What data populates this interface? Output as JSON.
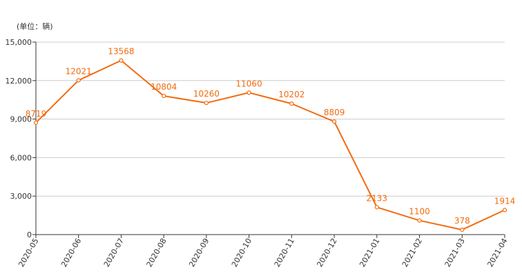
{
  "chart_data": {
    "type": "line",
    "unit_label": "(单位：辆)",
    "title": "",
    "xlabel": "",
    "ylabel": "",
    "ylim": [
      0,
      15000
    ],
    "yticks": [
      0,
      3000,
      6000,
      9000,
      12000,
      15000
    ],
    "ytick_labels": [
      "0",
      "3,000",
      "6,000",
      "9,000",
      "12,000",
      "15,000"
    ],
    "categories": [
      "2020-05",
      "2020-06",
      "2020-07",
      "2020-08",
      "2020-09",
      "2020-10",
      "2020-11",
      "2020-12",
      "2021-01",
      "2021-02",
      "2021-03",
      "2021-04"
    ],
    "series": [
      {
        "values": [
          8719,
          12021,
          13568,
          10804,
          10260,
          11060,
          10202,
          8809,
          2133,
          1100,
          378,
          1914
        ],
        "labels": [
          "8719",
          "12021",
          "13568",
          "10804",
          "10260",
          "11060",
          "10202",
          "8809",
          "2133",
          "1100",
          "378",
          "1914"
        ],
        "color": "#f26b0f"
      }
    ],
    "grid": true,
    "legend": "none",
    "axis_color": "#333333",
    "grid_color": "#cccccc"
  }
}
